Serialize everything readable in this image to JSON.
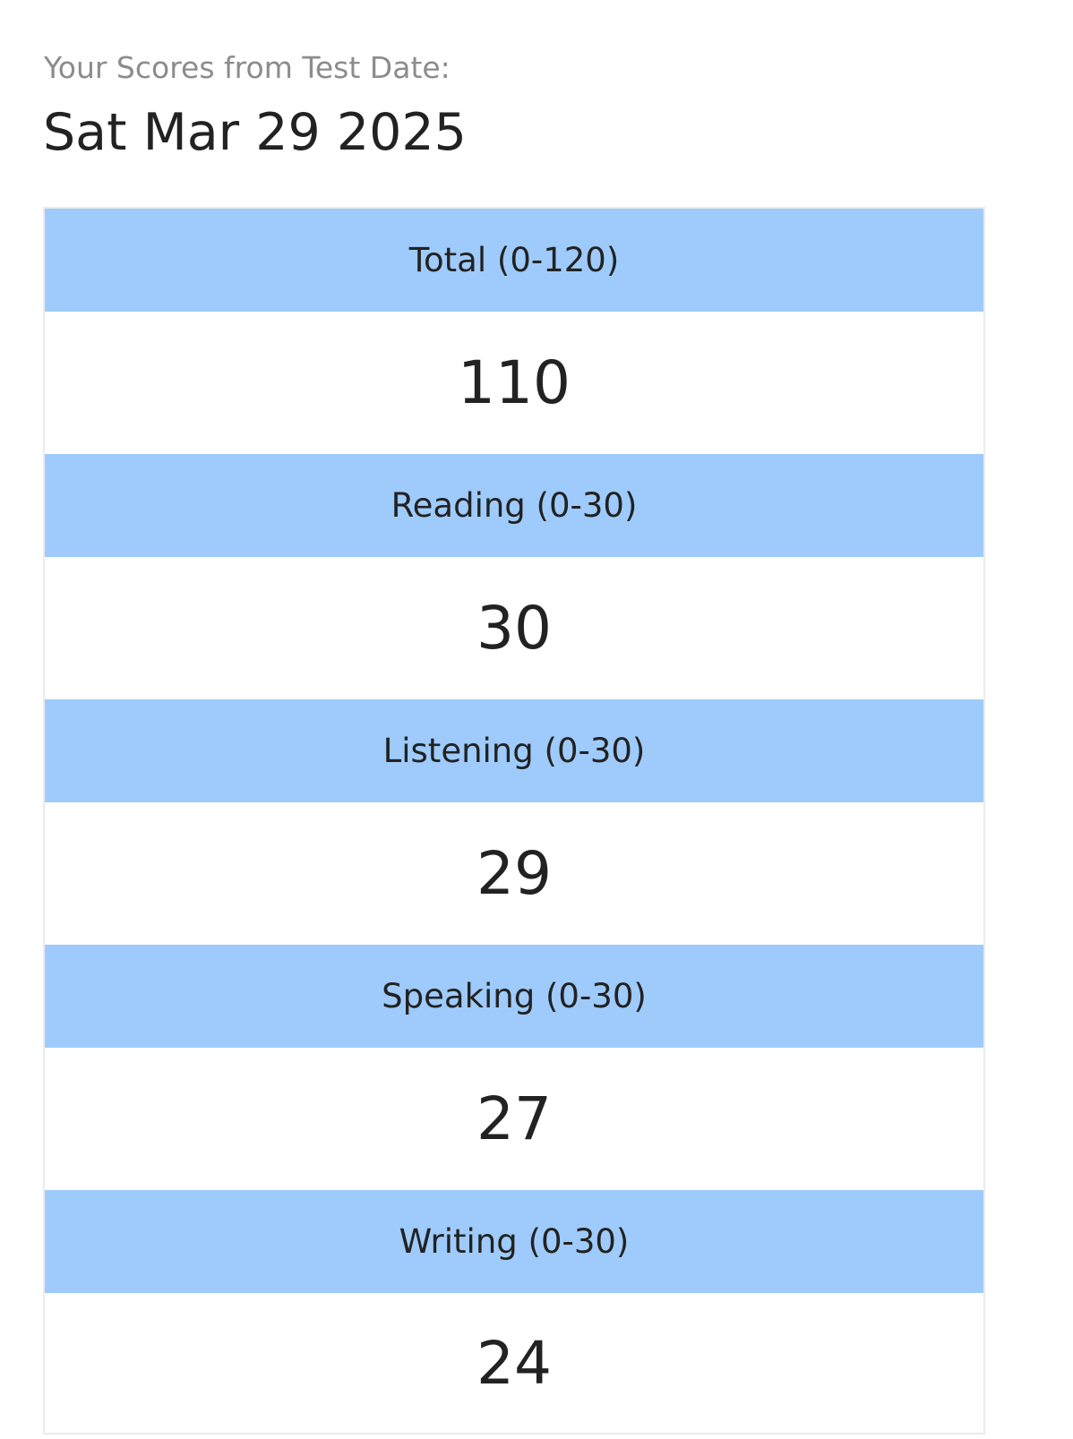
{
  "header": {
    "label": "Your Scores from Test Date:",
    "date": "Sat Mar 29 2025"
  },
  "scores": [
    {
      "label": "Total (0-120)",
      "value": "110"
    },
    {
      "label": "Reading (0-30)",
      "value": "30"
    },
    {
      "label": "Listening (0-30)",
      "value": "29"
    },
    {
      "label": "Speaking (0-30)",
      "value": "27"
    },
    {
      "label": "Writing (0-30)",
      "value": "24"
    }
  ],
  "colors": {
    "section_header_bg": "#9ecbfc",
    "text": "#222222",
    "muted_text": "#8c8c8c",
    "card_border": "#ebebeb"
  }
}
